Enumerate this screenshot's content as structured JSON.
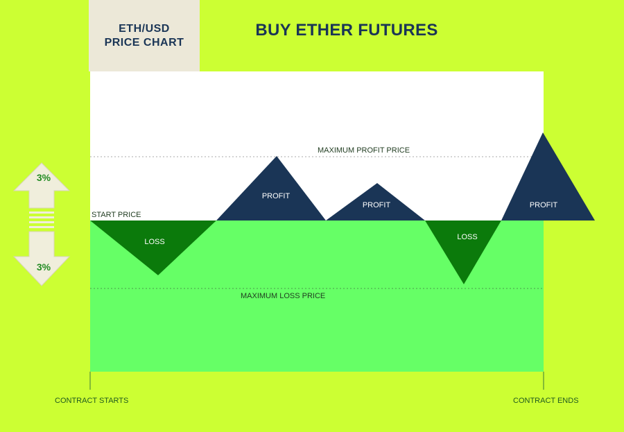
{
  "header": {
    "tab_line1": "ETH/USD",
    "tab_line2": "PRICE CHART",
    "title": "BUY ETHER FUTURES"
  },
  "levels": {
    "max_profit": "MAXIMUM PROFIT PRICE",
    "start": "START PRICE",
    "max_loss": "MAXIMUM LOSS PRICE"
  },
  "triangles": [
    {
      "label": "LOSS"
    },
    {
      "label": "PROFIT"
    },
    {
      "label": "PROFIT"
    },
    {
      "label": "LOSS"
    },
    {
      "label": "PROFIT"
    }
  ],
  "range": {
    "up": "3%",
    "down": "3%"
  },
  "timeline": {
    "start": "CONTRACT STARTS",
    "end": "CONTRACT ENDS"
  },
  "colors": {
    "background": "#ccff33",
    "profit_zone": "#ffffff",
    "loss_zone": "#66ff66",
    "profit_triangle": "#1a3556",
    "loss_triangle": "#0b7a0b",
    "title_text": "#1a3556"
  }
}
